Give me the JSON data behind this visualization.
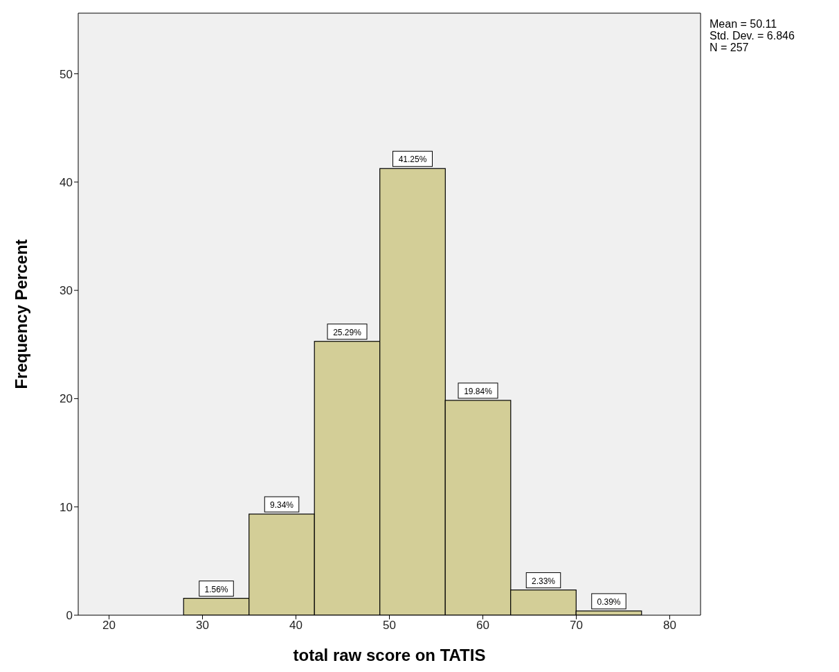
{
  "chart_data": {
    "type": "histogram",
    "xlabel": "total raw score on TATIS",
    "ylabel": "Frequency Percent",
    "bins": [
      28,
      35,
      42,
      49,
      56,
      63,
      70,
      77
    ],
    "values": [
      1.56,
      9.34,
      25.29,
      41.25,
      19.84,
      2.33,
      0.39
    ],
    "value_labels": [
      "1.56%",
      "9.34%",
      "25.29%",
      "41.25%",
      "19.84%",
      "2.33%",
      "0.39%"
    ],
    "color": "#d3ce97",
    "xlim": [
      16.7,
      83.3
    ],
    "xticks": [
      20,
      30,
      40,
      50,
      60,
      70,
      80
    ],
    "ylim": [
      0,
      55.6
    ],
    "yticks": [
      0,
      10,
      20,
      30,
      40,
      50
    ],
    "annotations": [
      "Mean = 50.11",
      "Std. Dev. = 6.846",
      "N = 257"
    ]
  }
}
